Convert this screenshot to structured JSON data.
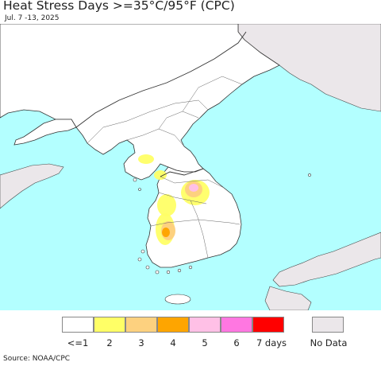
{
  "title": "Heat Stress Days >=35°C/95°F (CPC)",
  "subtitle": "Jul. 7 -13, 2025",
  "source": "Source: NOAA/CPC",
  "colors": {
    "sea": "#b3ffff",
    "land": "#ffffff",
    "nodata_land": "#ebe7ea",
    "border": "#333333"
  },
  "legend": {
    "items": [
      {
        "label": "<=1",
        "color": "#ffffff"
      },
      {
        "label": "2",
        "color": "#ffff66"
      },
      {
        "label": "3",
        "color": "#fdd17f"
      },
      {
        "label": "4",
        "color": "#fea500"
      },
      {
        "label": "5",
        "color": "#ffc0e6"
      },
      {
        "label": "6",
        "color": "#ff77e1"
      },
      {
        "label": "7 days",
        "color": "#ff0000"
      }
    ],
    "nodata": {
      "label": "No Data",
      "color": "#ebe7ea"
    }
  }
}
